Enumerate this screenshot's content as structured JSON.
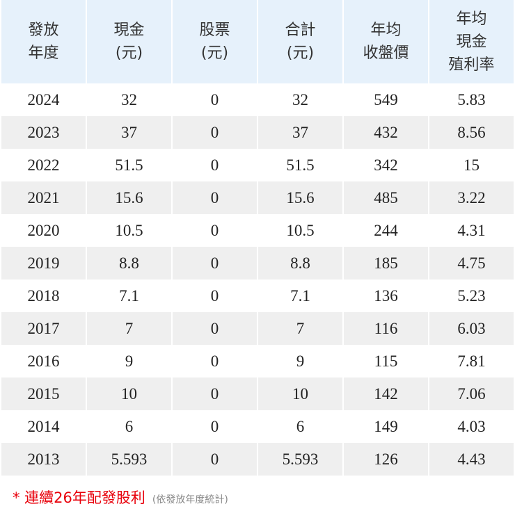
{
  "table": {
    "header": [
      [
        "發放",
        "年度"
      ],
      [
        "現金",
        "(元)"
      ],
      [
        "股票",
        "(元)"
      ],
      [
        "合計",
        "(元)"
      ],
      [
        "年均",
        "收盤價"
      ],
      [
        "年均",
        "現金",
        "殖利率"
      ]
    ],
    "rows": [
      [
        "2024",
        "32",
        "0",
        "32",
        "549",
        "5.83"
      ],
      [
        "2023",
        "37",
        "0",
        "37",
        "432",
        "8.56"
      ],
      [
        "2022",
        "51.5",
        "0",
        "51.5",
        "342",
        "15"
      ],
      [
        "2021",
        "15.6",
        "0",
        "15.6",
        "485",
        "3.22"
      ],
      [
        "2020",
        "10.5",
        "0",
        "10.5",
        "244",
        "4.31"
      ],
      [
        "2019",
        "8.8",
        "0",
        "8.8",
        "185",
        "4.75"
      ],
      [
        "2018",
        "7.1",
        "0",
        "7.1",
        "136",
        "5.23"
      ],
      [
        "2017",
        "7",
        "0",
        "7",
        "116",
        "6.03"
      ],
      [
        "2016",
        "9",
        "0",
        "9",
        "115",
        "7.81"
      ],
      [
        "2015",
        "10",
        "0",
        "10",
        "142",
        "7.06"
      ],
      [
        "2014",
        "6",
        "0",
        "6",
        "149",
        "4.03"
      ],
      [
        "2013",
        "5.593",
        "0",
        "5.593",
        "126",
        "4.43"
      ]
    ]
  },
  "footer": {
    "note": "* 連續26年配發股利",
    "sub": "(依發放年度統計)"
  }
}
